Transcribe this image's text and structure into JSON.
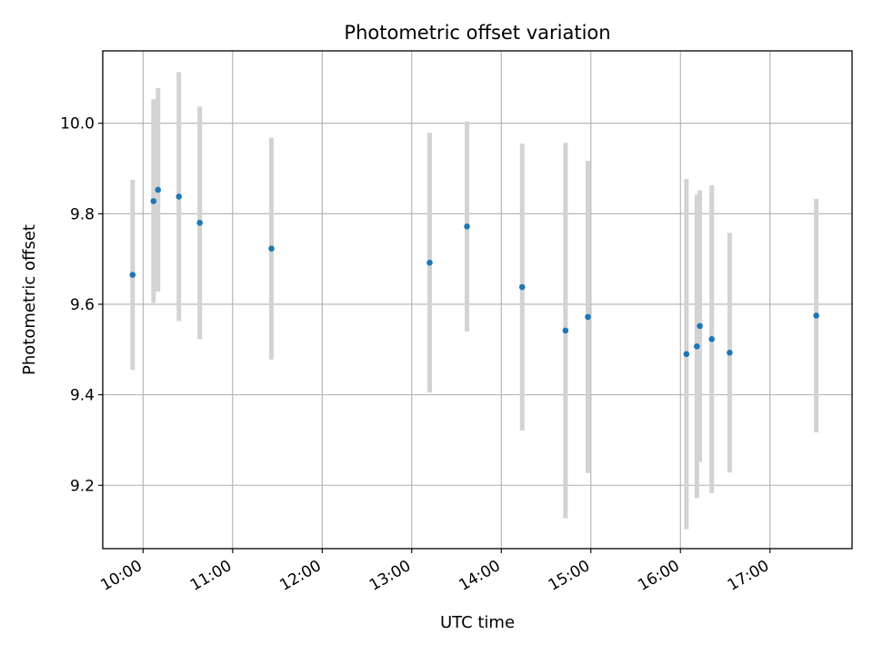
{
  "chart_data": {
    "type": "scatter",
    "title": "Photometric offset variation",
    "xlabel": "UTC time",
    "ylabel": "Photometric offset",
    "x_tick_labels": [
      "10:00",
      "11:00",
      "12:00",
      "13:00",
      "14:00",
      "15:00",
      "16:00",
      "17:00"
    ],
    "y_tick_labels": [
      "9.2",
      "9.4",
      "9.6",
      "9.8",
      "10.0"
    ],
    "xlim": [
      "09:33",
      "17:55"
    ],
    "ylim": [
      9.06,
      10.16
    ],
    "grid": true,
    "legend": "none",
    "colors": {
      "point": "#1f77b4",
      "errorbar": "#d3d3d3",
      "grid": "#b0b0b0"
    },
    "series": [
      {
        "points": [
          {
            "x": "09:53",
            "y": 9.665,
            "err": 0.21
          },
          {
            "x": "10:07",
            "y": 9.828,
            "err": 0.225
          },
          {
            "x": "10:10",
            "y": 9.853,
            "err": 0.225
          },
          {
            "x": "10:24",
            "y": 9.838,
            "err": 0.275
          },
          {
            "x": "10:38",
            "y": 9.78,
            "err": 0.257
          },
          {
            "x": "11:26",
            "y": 9.723,
            "err": 0.245
          },
          {
            "x": "13:12",
            "y": 9.692,
            "err": 0.287
          },
          {
            "x": "13:37",
            "y": 9.772,
            "err": 0.232
          },
          {
            "x": "14:14",
            "y": 9.638,
            "err": 0.317
          },
          {
            "x": "14:43",
            "y": 9.542,
            "err": 0.415
          },
          {
            "x": "14:58",
            "y": 9.572,
            "err": 0.345
          },
          {
            "x": "16:04",
            "y": 9.49,
            "err": 0.387
          },
          {
            "x": "16:11",
            "y": 9.507,
            "err": 0.335
          },
          {
            "x": "16:13",
            "y": 9.552,
            "err": 0.3
          },
          {
            "x": "16:21",
            "y": 9.523,
            "err": 0.34
          },
          {
            "x": "16:33",
            "y": 9.493,
            "err": 0.265
          },
          {
            "x": "17:31",
            "y": 9.575,
            "err": 0.258
          }
        ]
      }
    ]
  }
}
